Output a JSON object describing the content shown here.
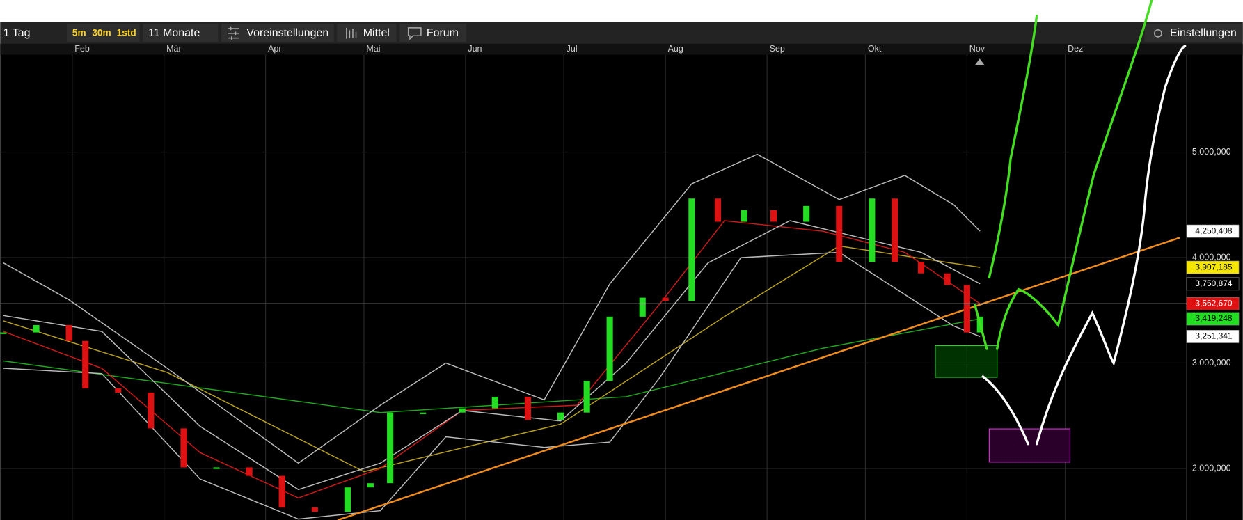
{
  "toolbar": {
    "period": "1 Tag",
    "intervals": [
      "5m",
      "30m",
      "1std"
    ],
    "range": "11 Monate",
    "presets": "Voreinstellungen",
    "indicator": "Mittel",
    "forum": "Forum",
    "settings": "Einstellungen"
  },
  "chart_data": {
    "type": "candlestick",
    "xlim": [
      9,
      371
    ],
    "xticks": [
      {
        "value": 31,
        "label": "Feb"
      },
      {
        "value": 59,
        "label": "Mär"
      },
      {
        "value": 90,
        "label": "Apr"
      },
      {
        "value": 120,
        "label": "Mai"
      },
      {
        "value": 151,
        "label": "Jun"
      },
      {
        "value": 181,
        "label": "Jul"
      },
      {
        "value": 212,
        "label": "Aug"
      },
      {
        "value": 243,
        "label": "Sep"
      },
      {
        "value": 273,
        "label": "Okt"
      },
      {
        "value": 304,
        "label": "Nov"
      },
      {
        "value": 334,
        "label": "Dez"
      }
    ],
    "ylim": [
      1511000,
      5917000
    ],
    "yticks": [
      {
        "value": 2000000,
        "label": "2.000,000"
      },
      {
        "value": 3000000,
        "label": "3.000,000"
      },
      {
        "value": 4000000,
        "label": "4.000,000"
      },
      {
        "value": 5000000,
        "label": "5.000,000"
      }
    ],
    "grid": true,
    "up_color": "#22dd22",
    "down_color": "#dd1111",
    "x": [
      10,
      20,
      30,
      35,
      45,
      55,
      65,
      75,
      85,
      95,
      105,
      115,
      122,
      128,
      138,
      150,
      160,
      170,
      180,
      188,
      195,
      205,
      212,
      220,
      228,
      236,
      245,
      255,
      265,
      275,
      282,
      290,
      298,
      304,
      308
    ],
    "values": [
      3290000,
      3360000,
      3210000,
      2760000,
      2720000,
      2380000,
      2010000,
      2010000,
      1930000,
      1630000,
      1590000,
      1820000,
      1860000,
      2530000,
      2530000,
      2570000,
      2680000,
      2460000,
      2530000,
      2830000,
      3440000,
      3620000,
      3590000,
      4560000,
      4340000,
      4450000,
      4340000,
      4490000,
      3960000,
      4560000,
      3960000,
      3850000,
      3740000,
      3290000,
      3440000
    ],
    "overlays": [
      {
        "color": "#1fa81f",
        "x": [
          10,
          125,
          200,
          260,
          308
        ],
        "values": [
          3020000,
          2530000,
          2680000,
          3140000,
          3419248
        ]
      },
      {
        "color": "#b8a020",
        "x": [
          10,
          60,
          120,
          180,
          230,
          265,
          308
        ],
        "values": [
          3400000,
          2910000,
          1970000,
          2420000,
          3440000,
          4110000,
          3907185
        ]
      },
      {
        "color": "#cc1a1a",
        "x": [
          10,
          40,
          70,
          100,
          125,
          150,
          185,
          210,
          230,
          260,
          285,
          308
        ],
        "values": [
          3300000,
          2950000,
          2150000,
          1720000,
          2000000,
          2550000,
          2600000,
          3550000,
          4350000,
          4250000,
          4050000,
          3562670
        ]
      },
      {
        "color": "#bbbbbb",
        "x": [
          10,
          30,
          60,
          100,
          125,
          145,
          175,
          195,
          220,
          240,
          265,
          285,
          300,
          308
        ],
        "values": [
          3950000,
          3600000,
          2950000,
          2050000,
          2600000,
          3000000,
          2650000,
          3750000,
          4700000,
          4980000,
          4550000,
          4780000,
          4500000,
          4250408
        ]
      },
      {
        "color": "#bbbbbb",
        "x": [
          10,
          40,
          70,
          100,
          125,
          145,
          175,
          195,
          210,
          235,
          265,
          290,
          300,
          308
        ],
        "values": [
          2950000,
          2900000,
          1900000,
          1520000,
          1600000,
          2300000,
          2200000,
          2250000,
          2850000,
          4000000,
          4050000,
          3550000,
          3350000,
          3251341
        ]
      },
      {
        "color": "#bbbbbb",
        "x": [
          10,
          40,
          70,
          100,
          125,
          150,
          180,
          200,
          225,
          250,
          270,
          290,
          308
        ],
        "values": [
          3450000,
          3300000,
          2400000,
          1800000,
          2050000,
          2550000,
          2450000,
          3000000,
          3950000,
          4350000,
          4200000,
          4050000,
          3750874
        ]
      },
      {
        "color": "#f08c1e",
        "x": [
          112,
          369
        ],
        "values": [
          1510000,
          4190000
        ]
      }
    ],
    "markers": [
      {
        "value": 4250408,
        "label": "4,250,408",
        "color": "#ffffff"
      },
      {
        "value": 3907185,
        "label": "3,907,185",
        "color": "#f5e600"
      },
      {
        "value": 3750874,
        "label": "3,750,874",
        "color": "#000000"
      },
      {
        "value": 3562670,
        "label": "3,562,670",
        "color": "#e01010"
      },
      {
        "value": 3419248,
        "label": "3,419,248",
        "color": "#22dd22"
      },
      {
        "value": 3251341,
        "label": "3,251,341",
        "color": "#ffffff"
      }
    ]
  }
}
